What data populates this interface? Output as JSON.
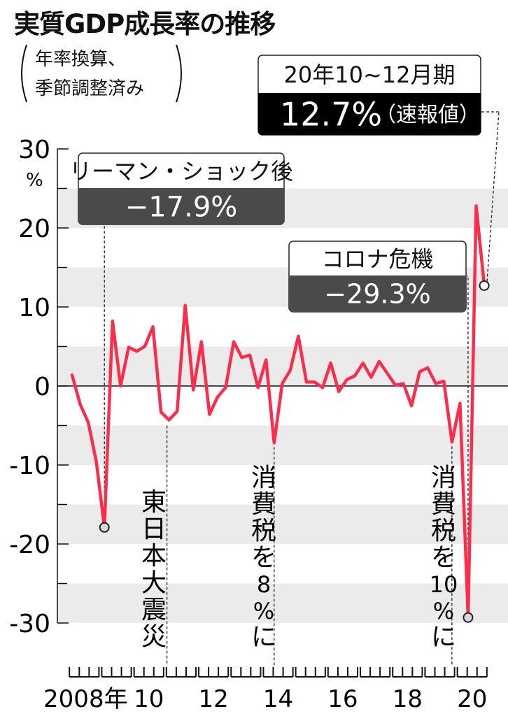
{
  "title": "実質GDP成長率の推移",
  "subtitle": [
    "年率換算、",
    "季節調整済み"
  ],
  "callouts": {
    "latest": {
      "label": "20年10~12月期",
      "value": "12.7%",
      "note": "（速報値）"
    },
    "lehman": {
      "label": "リーマン・ショック後",
      "value": "−17.9%"
    },
    "covid": {
      "label": "コロナ危機",
      "value": "−29.3%"
    }
  },
  "annotations": {
    "quake": "東日本大震災",
    "tax8": [
      "消",
      "費",
      "税",
      "を",
      "8",
      "%",
      "に"
    ],
    "tax10": [
      "消",
      "費",
      "税",
      "を",
      "10",
      "%",
      "に"
    ]
  },
  "colors": {
    "line": "#ff2d4b",
    "band": "#ebebeb",
    "dark_box": "#4a4a4a",
    "black_box": "#000000"
  },
  "chart_data": {
    "type": "line",
    "title": "実質GDP成長率の推移",
    "y_unit": "%",
    "ylim": [
      -30,
      30
    ],
    "y_ticks": [
      30,
      20,
      10,
      0,
      -10,
      -20,
      -30
    ],
    "y_tick_labels": [
      "30",
      "20",
      "10",
      "0",
      "-10",
      "-20",
      "-30"
    ],
    "x_tick_labels": [
      "2008年",
      "10",
      "12",
      "14",
      "16",
      "18",
      "20"
    ],
    "quarters": [
      "2008Q1",
      "2008Q2",
      "2008Q3",
      "2008Q4",
      "2009Q1",
      "2009Q2",
      "2009Q3",
      "2009Q4",
      "2010Q1",
      "2010Q2",
      "2010Q3",
      "2010Q4",
      "2011Q1",
      "2011Q2",
      "2011Q3",
      "2011Q4",
      "2012Q1",
      "2012Q2",
      "2012Q3",
      "2012Q4",
      "2013Q1",
      "2013Q2",
      "2013Q3",
      "2013Q4",
      "2014Q1",
      "2014Q2",
      "2014Q3",
      "2014Q4",
      "2015Q1",
      "2015Q2",
      "2015Q3",
      "2015Q4",
      "2016Q1",
      "2016Q2",
      "2016Q3",
      "2016Q4",
      "2017Q1",
      "2017Q2",
      "2017Q3",
      "2017Q4",
      "2018Q1",
      "2018Q2",
      "2018Q3",
      "2018Q4",
      "2019Q1",
      "2019Q2",
      "2019Q3",
      "2019Q4",
      "2020Q1",
      "2020Q2",
      "2020Q3",
      "2020Q4"
    ],
    "values": [
      1.4,
      -2.3,
      -4.6,
      -9.6,
      -17.9,
      8.2,
      0.0,
      4.9,
      4.4,
      5.0,
      7.5,
      -3.3,
      -4.3,
      -3.2,
      10.2,
      -0.5,
      5.6,
      -3.6,
      -1.4,
      -0.2,
      5.6,
      3.6,
      3.9,
      -0.2,
      3.3,
      -7.2,
      0.3,
      2.0,
      6.3,
      0.5,
      0.5,
      -0.2,
      2.9,
      -0.7,
      0.8,
      1.3,
      2.9,
      1.1,
      3.1,
      1.6,
      0.1,
      0.3,
      -2.5,
      1.8,
      2.3,
      0.3,
      0.6,
      -7.1,
      -2.2,
      -29.3,
      22.8,
      12.7
    ],
    "events": [
      {
        "quarter": "2009Q1",
        "label": "リーマン・ショック後",
        "value": -17.9
      },
      {
        "quarter": "2011Q1",
        "label": "東日本大震災"
      },
      {
        "quarter": "2014Q2",
        "label": "消費税を8%に"
      },
      {
        "quarter": "2019Q4",
        "label": "消費税を10%に"
      },
      {
        "quarter": "2020Q2",
        "label": "コロナ危機",
        "value": -29.3
      },
      {
        "quarter": "2020Q4",
        "label": "20年10~12月期",
        "value": 12.7
      }
    ]
  }
}
